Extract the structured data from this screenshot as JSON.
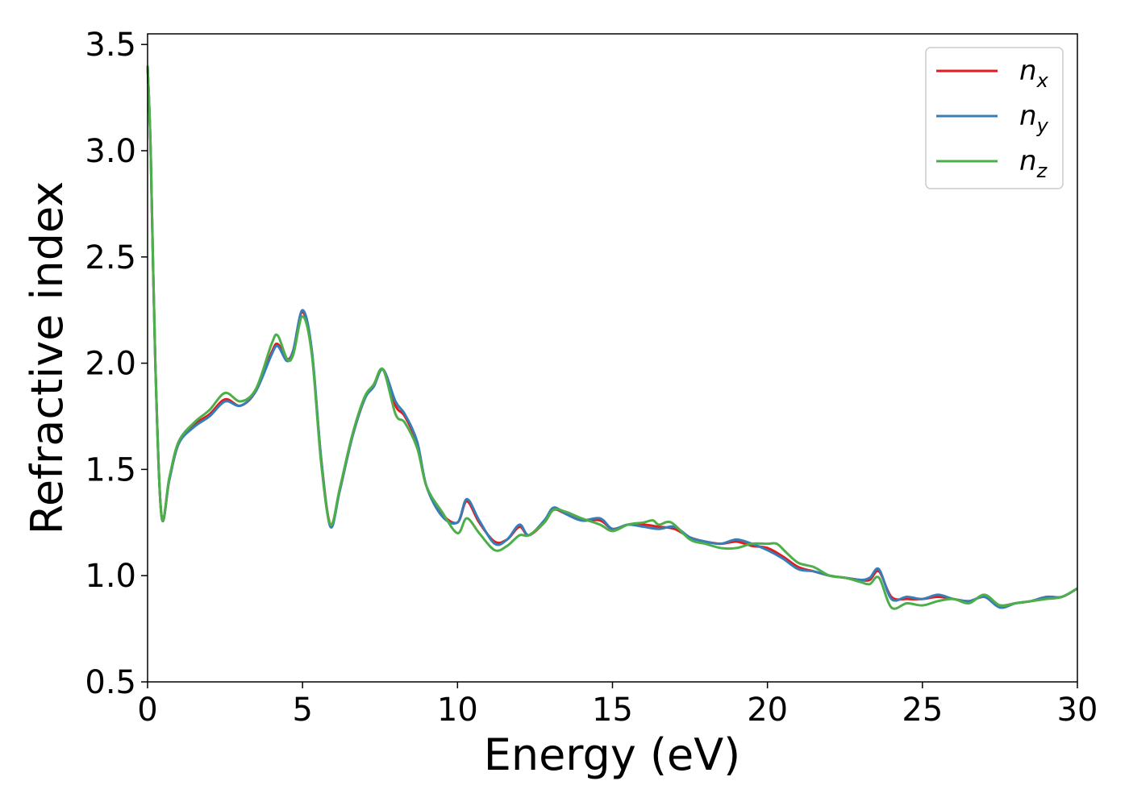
{
  "chart_data": {
    "type": "line",
    "title": "",
    "xlabel": "Energy (eV)",
    "ylabel": "Refractive index",
    "xlim": [
      0,
      30
    ],
    "ylim": [
      0.5,
      3.55
    ],
    "x_ticks": [
      "0",
      "5",
      "10",
      "15",
      "20",
      "25",
      "30"
    ],
    "y_ticks": [
      "0.5",
      "1.0",
      "1.5",
      "2.0",
      "2.5",
      "3.0",
      "3.5"
    ],
    "grid": false,
    "legend_position": "top-right",
    "series": [
      {
        "name": "n_x",
        "base": "n",
        "sub": "x",
        "color": "#e41a1c",
        "points": [
          [
            0,
            3.4
          ],
          [
            0.1,
            3.0
          ],
          [
            0.25,
            2.0
          ],
          [
            0.45,
            1.28
          ],
          [
            0.7,
            1.45
          ],
          [
            1.0,
            1.62
          ],
          [
            1.5,
            1.71
          ],
          [
            2.0,
            1.76
          ],
          [
            2.5,
            1.83
          ],
          [
            3.0,
            1.8
          ],
          [
            3.5,
            1.87
          ],
          [
            4.0,
            2.05
          ],
          [
            4.2,
            2.09
          ],
          [
            4.5,
            2.02
          ],
          [
            4.7,
            2.06
          ],
          [
            5.0,
            2.24
          ],
          [
            5.3,
            2.05
          ],
          [
            5.6,
            1.55
          ],
          [
            5.9,
            1.24
          ],
          [
            6.2,
            1.4
          ],
          [
            6.6,
            1.65
          ],
          [
            7.0,
            1.83
          ],
          [
            7.3,
            1.9
          ],
          [
            7.6,
            1.97
          ],
          [
            8.0,
            1.8
          ],
          [
            8.3,
            1.75
          ],
          [
            8.7,
            1.62
          ],
          [
            9.0,
            1.42
          ],
          [
            9.5,
            1.29
          ],
          [
            10.0,
            1.25
          ],
          [
            10.3,
            1.35
          ],
          [
            10.7,
            1.25
          ],
          [
            11.2,
            1.16
          ],
          [
            11.6,
            1.17
          ],
          [
            12.0,
            1.23
          ],
          [
            12.3,
            1.19
          ],
          [
            12.8,
            1.25
          ],
          [
            13.1,
            1.31
          ],
          [
            13.5,
            1.29
          ],
          [
            14.0,
            1.26
          ],
          [
            14.6,
            1.26
          ],
          [
            15.0,
            1.22
          ],
          [
            15.5,
            1.24
          ],
          [
            16.0,
            1.24
          ],
          [
            16.5,
            1.23
          ],
          [
            17.0,
            1.22
          ],
          [
            17.5,
            1.18
          ],
          [
            18.0,
            1.16
          ],
          [
            18.5,
            1.15
          ],
          [
            19.0,
            1.16
          ],
          [
            19.5,
            1.14
          ],
          [
            20.0,
            1.13
          ],
          [
            20.5,
            1.09
          ],
          [
            21.0,
            1.04
          ],
          [
            21.5,
            1.02
          ],
          [
            22.0,
            1.0
          ],
          [
            22.5,
            0.99
          ],
          [
            23.0,
            0.98
          ],
          [
            23.3,
            0.98
          ],
          [
            23.6,
            1.02
          ],
          [
            24.0,
            0.9
          ],
          [
            24.5,
            0.89
          ],
          [
            25.0,
            0.89
          ],
          [
            25.5,
            0.9
          ],
          [
            26.0,
            0.89
          ],
          [
            26.5,
            0.88
          ],
          [
            27.0,
            0.9
          ],
          [
            27.5,
            0.86
          ],
          [
            28.0,
            0.87
          ],
          [
            28.5,
            0.88
          ],
          [
            29.0,
            0.9
          ],
          [
            29.5,
            0.9
          ],
          [
            30.0,
            0.94
          ]
        ]
      },
      {
        "name": "n_y",
        "base": "n",
        "sub": "y",
        "color": "#377eb8",
        "points": [
          [
            0,
            3.4
          ],
          [
            0.1,
            3.0
          ],
          [
            0.25,
            2.0
          ],
          [
            0.45,
            1.28
          ],
          [
            0.7,
            1.45
          ],
          [
            1.0,
            1.62
          ],
          [
            1.5,
            1.7
          ],
          [
            2.0,
            1.75
          ],
          [
            2.5,
            1.82
          ],
          [
            3.0,
            1.8
          ],
          [
            3.5,
            1.87
          ],
          [
            4.0,
            2.04
          ],
          [
            4.2,
            2.08
          ],
          [
            4.5,
            2.01
          ],
          [
            4.7,
            2.06
          ],
          [
            5.0,
            2.25
          ],
          [
            5.3,
            2.06
          ],
          [
            5.6,
            1.55
          ],
          [
            5.9,
            1.23
          ],
          [
            6.2,
            1.4
          ],
          [
            6.6,
            1.65
          ],
          [
            7.0,
            1.83
          ],
          [
            7.3,
            1.89
          ],
          [
            7.6,
            1.97
          ],
          [
            8.0,
            1.82
          ],
          [
            8.3,
            1.76
          ],
          [
            8.7,
            1.63
          ],
          [
            9.0,
            1.42
          ],
          [
            9.5,
            1.28
          ],
          [
            10.0,
            1.25
          ],
          [
            10.3,
            1.36
          ],
          [
            10.7,
            1.26
          ],
          [
            11.2,
            1.15
          ],
          [
            11.6,
            1.17
          ],
          [
            12.0,
            1.24
          ],
          [
            12.3,
            1.19
          ],
          [
            12.8,
            1.26
          ],
          [
            13.1,
            1.32
          ],
          [
            13.5,
            1.29
          ],
          [
            14.0,
            1.26
          ],
          [
            14.6,
            1.27
          ],
          [
            15.0,
            1.22
          ],
          [
            15.5,
            1.24
          ],
          [
            16.0,
            1.23
          ],
          [
            16.5,
            1.22
          ],
          [
            17.0,
            1.23
          ],
          [
            17.5,
            1.18
          ],
          [
            18.0,
            1.16
          ],
          [
            18.5,
            1.15
          ],
          [
            19.0,
            1.17
          ],
          [
            19.5,
            1.15
          ],
          [
            20.0,
            1.12
          ],
          [
            20.5,
            1.08
          ],
          [
            21.0,
            1.03
          ],
          [
            21.5,
            1.02
          ],
          [
            22.0,
            1.0
          ],
          [
            22.5,
            0.99
          ],
          [
            23.0,
            0.98
          ],
          [
            23.3,
            0.99
          ],
          [
            23.6,
            1.03
          ],
          [
            24.0,
            0.89
          ],
          [
            24.5,
            0.9
          ],
          [
            25.0,
            0.89
          ],
          [
            25.5,
            0.91
          ],
          [
            26.0,
            0.89
          ],
          [
            26.5,
            0.88
          ],
          [
            27.0,
            0.9
          ],
          [
            27.5,
            0.85
          ],
          [
            28.0,
            0.87
          ],
          [
            28.5,
            0.88
          ],
          [
            29.0,
            0.9
          ],
          [
            29.5,
            0.9
          ],
          [
            30.0,
            0.94
          ]
        ]
      },
      {
        "name": "n_z",
        "base": "n",
        "sub": "z",
        "color": "#4daf4a",
        "points": [
          [
            0,
            3.4
          ],
          [
            0.1,
            3.0
          ],
          [
            0.25,
            2.0
          ],
          [
            0.45,
            1.28
          ],
          [
            0.7,
            1.46
          ],
          [
            1.0,
            1.63
          ],
          [
            1.5,
            1.72
          ],
          [
            2.0,
            1.78
          ],
          [
            2.5,
            1.86
          ],
          [
            3.0,
            1.82
          ],
          [
            3.5,
            1.88
          ],
          [
            4.0,
            2.09
          ],
          [
            4.2,
            2.13
          ],
          [
            4.5,
            2.02
          ],
          [
            4.7,
            2.04
          ],
          [
            5.0,
            2.22
          ],
          [
            5.3,
            2.04
          ],
          [
            5.6,
            1.53
          ],
          [
            5.9,
            1.24
          ],
          [
            6.2,
            1.41
          ],
          [
            6.6,
            1.66
          ],
          [
            7.0,
            1.84
          ],
          [
            7.3,
            1.9
          ],
          [
            7.6,
            1.97
          ],
          [
            8.0,
            1.76
          ],
          [
            8.3,
            1.72
          ],
          [
            8.7,
            1.6
          ],
          [
            9.0,
            1.42
          ],
          [
            9.5,
            1.3
          ],
          [
            10.0,
            1.2
          ],
          [
            10.3,
            1.27
          ],
          [
            10.7,
            1.2
          ],
          [
            11.2,
            1.12
          ],
          [
            11.6,
            1.14
          ],
          [
            12.0,
            1.19
          ],
          [
            12.3,
            1.19
          ],
          [
            12.8,
            1.25
          ],
          [
            13.1,
            1.31
          ],
          [
            13.5,
            1.3
          ],
          [
            14.0,
            1.27
          ],
          [
            14.6,
            1.24
          ],
          [
            15.0,
            1.21
          ],
          [
            15.5,
            1.24
          ],
          [
            16.0,
            1.25
          ],
          [
            16.3,
            1.26
          ],
          [
            16.5,
            1.24
          ],
          [
            16.9,
            1.25
          ],
          [
            17.5,
            1.17
          ],
          [
            18.0,
            1.15
          ],
          [
            18.5,
            1.13
          ],
          [
            19.0,
            1.13
          ],
          [
            19.5,
            1.15
          ],
          [
            20.0,
            1.15
          ],
          [
            20.3,
            1.15
          ],
          [
            20.6,
            1.11
          ],
          [
            21.0,
            1.06
          ],
          [
            21.5,
            1.04
          ],
          [
            22.0,
            1.0
          ],
          [
            22.5,
            0.99
          ],
          [
            23.0,
            0.97
          ],
          [
            23.3,
            0.96
          ],
          [
            23.6,
            0.99
          ],
          [
            24.0,
            0.85
          ],
          [
            24.5,
            0.87
          ],
          [
            25.0,
            0.86
          ],
          [
            25.5,
            0.88
          ],
          [
            26.0,
            0.89
          ],
          [
            26.5,
            0.87
          ],
          [
            27.0,
            0.91
          ],
          [
            27.5,
            0.86
          ],
          [
            28.0,
            0.87
          ],
          [
            28.5,
            0.88
          ],
          [
            29.0,
            0.89
          ],
          [
            29.5,
            0.9
          ],
          [
            30.0,
            0.94
          ]
        ]
      }
    ]
  }
}
